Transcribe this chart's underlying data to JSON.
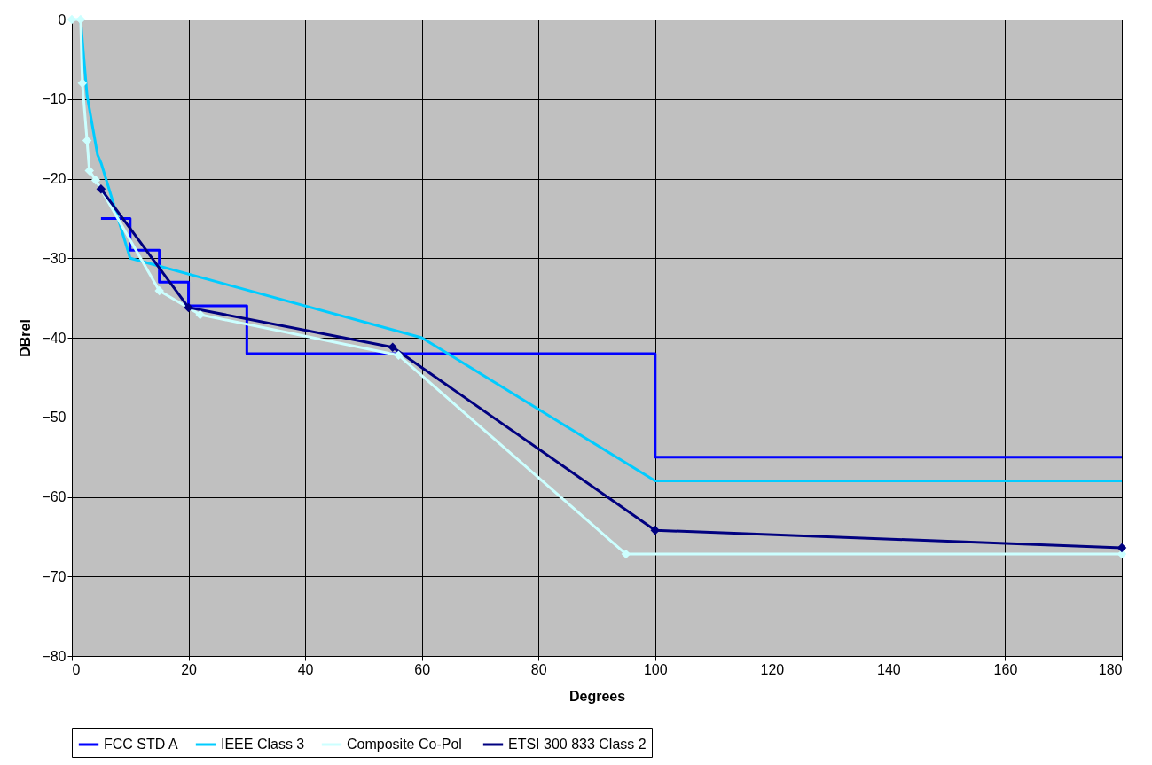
{
  "chart_data": {
    "type": "line",
    "xlabel": "Degrees",
    "ylabel": "DBrel",
    "xlim": [
      0,
      180
    ],
    "ylim": [
      -80,
      0
    ],
    "xticks": [
      0,
      20,
      40,
      60,
      80,
      100,
      120,
      140,
      160,
      180
    ],
    "yticks": [
      -80,
      -70,
      -60,
      -50,
      -40,
      -30,
      -20,
      -10,
      0
    ],
    "grid": true,
    "legend": "bottom",
    "line_style": "solid",
    "series": [
      {
        "name": "FCC STD A",
        "color": "#0000ff",
        "marker": "none",
        "x": [
          5,
          10,
          10,
          15,
          15,
          20,
          20,
          30,
          30,
          100,
          100,
          180
        ],
        "values": [
          -25,
          -25,
          -29,
          -29,
          -33,
          -33,
          -36,
          -36,
          -42,
          -42,
          -55,
          -55
        ]
      },
      {
        "name": "IEEE Class 3",
        "color": "#00ccff",
        "marker": "none",
        "x": [
          1.5,
          2.6,
          4.4,
          5,
          10,
          60,
          100,
          180
        ],
        "values": [
          0,
          -9.5,
          -17,
          -18,
          -30,
          -40,
          -58,
          -58
        ]
      },
      {
        "name": "Composite  Co-Pol",
        "color": "#ccffff",
        "marker": "diamond",
        "x": [
          0,
          1.5,
          1.8,
          2.6,
          3,
          4.1,
          15,
          22,
          56,
          95,
          180
        ],
        "values": [
          0,
          0,
          -8,
          -15.2,
          -19,
          -20.2,
          -34.1,
          -37.1,
          -42.2,
          -67.2,
          -67.2
        ]
      },
      {
        "name": "ETSI 300 833 Class 2",
        "color": "#000080",
        "marker": "diamond",
        "x": [
          5,
          20,
          55,
          100,
          180
        ],
        "values": [
          -21.3,
          -36.2,
          -41.2,
          -64.2,
          -66.4
        ]
      }
    ]
  }
}
